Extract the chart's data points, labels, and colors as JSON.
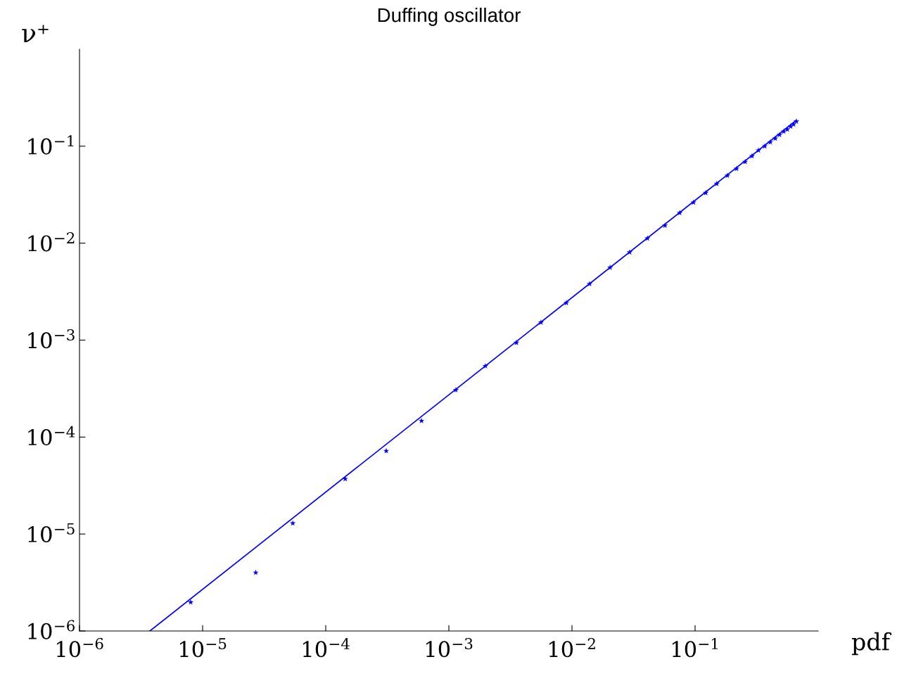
{
  "chart_data": {
    "type": "scatter",
    "title": "Duffing oscillator",
    "xlabel": "pdf",
    "ylabel": "ν⁺",
    "log": "xy",
    "grid": false,
    "marker": "star",
    "xlim": [
      1e-06,
      1
    ],
    "ylim": [
      1e-06,
      1
    ],
    "xticks": [
      {
        "value": 1e-06,
        "label": "10$^{−6}$"
      },
      {
        "value": 1e-05,
        "label": "10$^{−5}$"
      },
      {
        "value": 0.0001,
        "label": "10$^{−4}$"
      },
      {
        "value": 0.001,
        "label": "10$^{−3}$"
      },
      {
        "value": 0.01,
        "label": "10$^{−2}$"
      },
      {
        "value": 0.1,
        "label": "10$^{−1}$"
      }
    ],
    "yticks": [
      {
        "value": 1e-06,
        "label": "10$^{−6}$"
      },
      {
        "value": 1e-05,
        "label": "10$^{−5}$"
      },
      {
        "value": 0.0001,
        "label": "10$^{−4}$"
      },
      {
        "value": 0.001,
        "label": "10$^{−3}$"
      },
      {
        "value": 0.01,
        "label": "10$^{−2}$"
      },
      {
        "value": 0.1,
        "label": "10$^{−1}$"
      }
    ],
    "series": [
      {
        "color": "#0000ff",
        "x": [
          8e-06,
          2.7e-05,
          5.4e-05,
          0.000144,
          0.00031,
          0.0006,
          0.00114,
          0.00198,
          0.00354,
          0.0056,
          0.009,
          0.0139,
          0.0204,
          0.0294,
          0.041,
          0.057,
          0.075,
          0.097,
          0.122,
          0.15,
          0.183,
          0.217,
          0.255,
          0.29,
          0.327,
          0.368,
          0.408,
          0.448,
          0.485,
          0.525,
          0.561,
          0.598,
          0.631,
          0.665
        ],
        "values": [
          1.98e-06,
          4e-06,
          1.29e-05,
          3.7e-05,
          7.2e-05,
          0.000147,
          0.000306,
          0.00054,
          0.00094,
          0.00152,
          0.00242,
          0.0038,
          0.0056,
          0.00805,
          0.0112,
          0.0152,
          0.0205,
          0.0263,
          0.033,
          0.041,
          0.0497,
          0.0586,
          0.069,
          0.079,
          0.0906,
          0.1,
          0.11,
          0.12,
          0.131,
          0.142,
          0.149,
          0.16,
          0.168,
          0.18
        ]
      },
      {
        "type": "line",
        "marker": "none",
        "color": "#0000ff",
        "x": [
          3.73e-06,
          0.665
        ],
        "values": [
          1e-06,
          0.185
        ]
      }
    ]
  }
}
